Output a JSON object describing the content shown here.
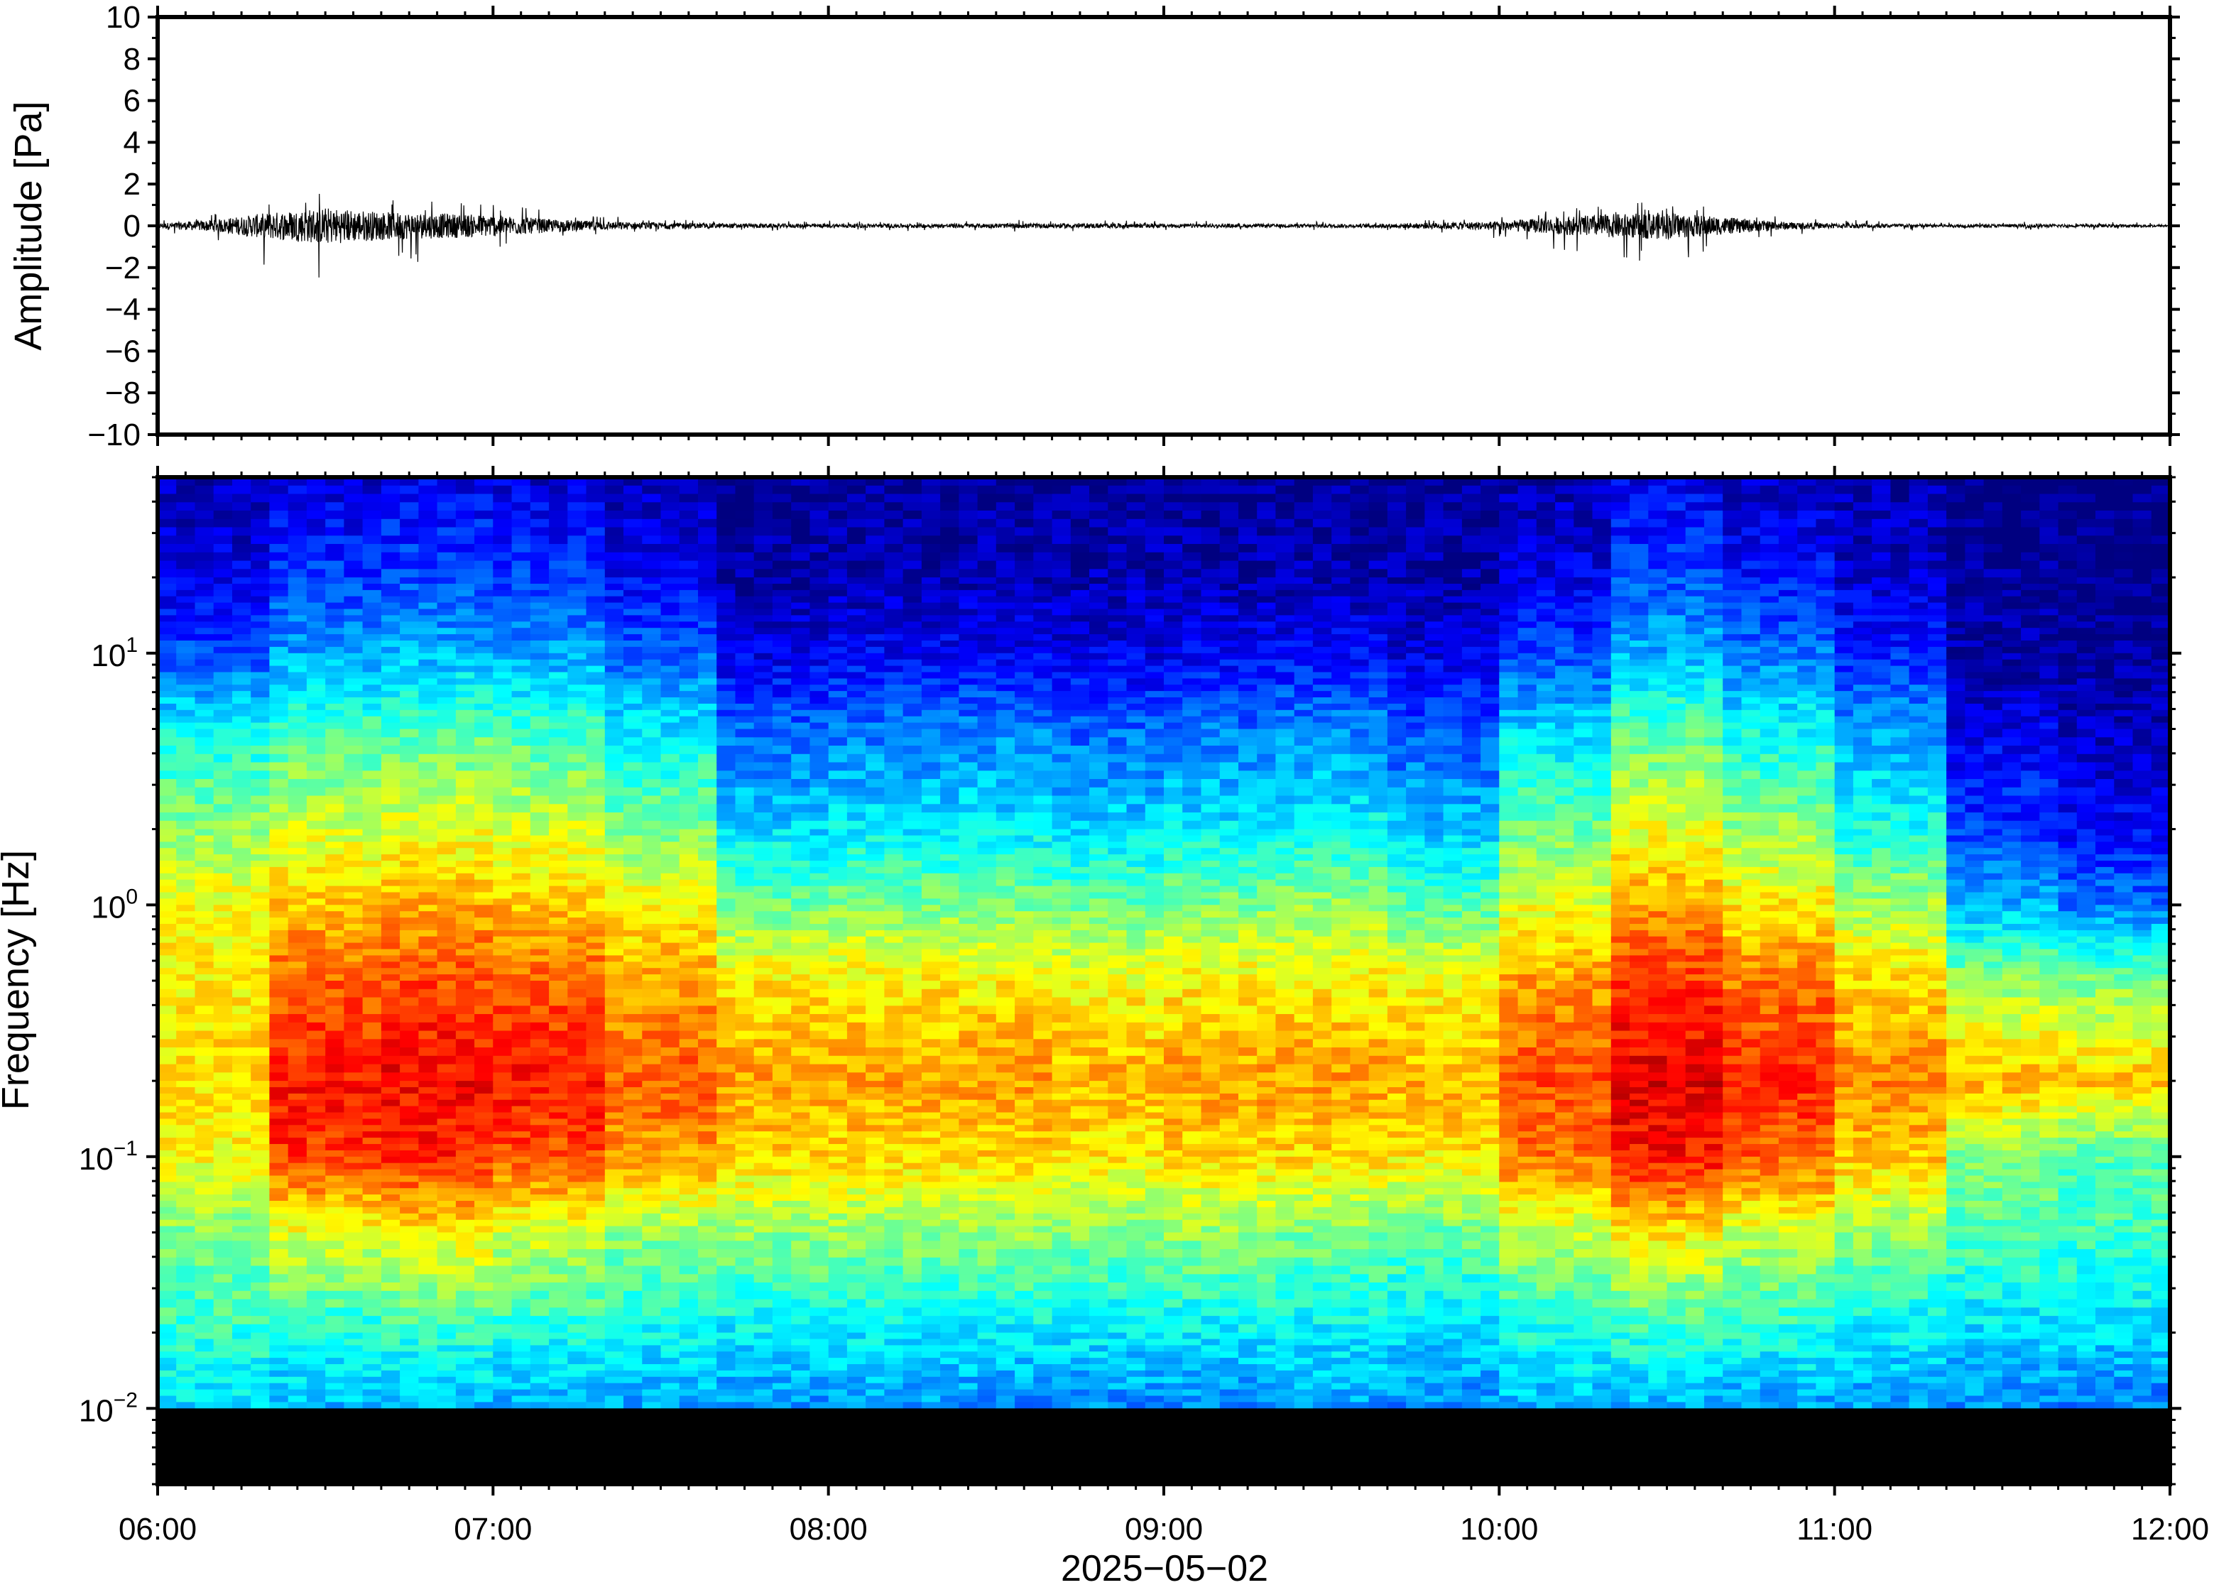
{
  "chart_data": [
    {
      "type": "line",
      "title": "",
      "xlabel": "",
      "ylabel": "Amplitude [Pa]",
      "ylim": [
        -10,
        10
      ],
      "yticks": [
        10,
        8,
        6,
        4,
        2,
        0,
        -2,
        -4,
        -6,
        -8,
        -10
      ],
      "ytick_labels": [
        "10",
        "8",
        "6",
        "4",
        "2",
        "0",
        "−2",
        "−4",
        "−6",
        "−8",
        "−10"
      ],
      "xlim": [
        "06:00",
        "12:00"
      ],
      "grid": false,
      "series": [
        {
          "x": [
            "06:00",
            "06:10",
            "06:20",
            "06:30",
            "06:40",
            "06:50",
            "07:00",
            "07:10",
            "07:20",
            "07:30",
            "07:40",
            "07:50",
            "08:00",
            "08:20",
            "08:40",
            "09:00",
            "09:20",
            "09:40",
            "10:00",
            "10:10",
            "10:20",
            "10:30",
            "10:40",
            "10:50",
            "11:00",
            "11:20",
            "11:40",
            "12:00"
          ],
          "envelope_max": [
            0.3,
            0.6,
            1.2,
            1.6,
            1.4,
            1.2,
            1.1,
            0.8,
            0.5,
            0.4,
            0.3,
            0.25,
            0.25,
            0.25,
            0.3,
            0.25,
            0.2,
            0.25,
            0.5,
            0.8,
            1.0,
            1.2,
            0.9,
            0.5,
            0.3,
            0.2,
            0.2,
            0.15
          ],
          "envelope_min": [
            -0.3,
            -0.8,
            -2.0,
            -2.8,
            -2.0,
            -1.8,
            -1.5,
            -0.8,
            -0.5,
            -0.4,
            -0.3,
            -0.25,
            -0.25,
            -0.25,
            -0.3,
            -0.25,
            -0.2,
            -0.25,
            -0.6,
            -1.2,
            -1.8,
            -2.0,
            -1.2,
            -0.5,
            -0.3,
            -0.2,
            -0.2,
            -0.15
          ]
        }
      ]
    },
    {
      "type": "heatmap",
      "title": "",
      "xlabel": "2025−05−02",
      "ylabel": "Frequency [Hz]",
      "yscale": "log",
      "ylim": [
        0.005,
        50
      ],
      "ytick_labels": [
        "10",
        "10",
        "10",
        "10"
      ],
      "ytick_exponents": [
        "1",
        "0",
        "−1",
        "−2"
      ],
      "ytick_values": [
        10,
        1,
        0.1,
        0.01
      ],
      "xlim": [
        "06:00",
        "12:00"
      ],
      "xtick_labels": [
        "06:00",
        "07:00",
        "08:00",
        "09:00",
        "10:00",
        "11:00",
        "12:00"
      ],
      "colormap": "jet",
      "x_segments": [
        "06:00-06:20",
        "06:20-06:40",
        "06:40-07:00",
        "07:00-07:20",
        "07:20-07:40",
        "07:40-08:00",
        "08:00-08:20",
        "08:20-08:40",
        "08:40-09:00",
        "09:00-09:20",
        "09:20-09:40",
        "09:40-10:00",
        "10:00-10:20",
        "10:20-10:40",
        "10:40-11:00",
        "11:00-11:20",
        "11:20-11:40",
        "11:40-12:00"
      ],
      "y_bands_hz": [
        50,
        20,
        10,
        5,
        2,
        1,
        0.5,
        0.2,
        0.1,
        0.05,
        0.02,
        0.01,
        0.005
      ],
      "relative_power": [
        [
          0.05,
          0.1,
          0.2,
          0.38,
          0.52,
          0.62,
          0.64,
          0.66,
          0.62,
          0.5,
          0.42,
          0.34
        ],
        [
          0.08,
          0.18,
          0.28,
          0.44,
          0.58,
          0.68,
          0.78,
          0.86,
          0.82,
          0.6,
          0.4,
          0.3
        ],
        [
          0.1,
          0.2,
          0.3,
          0.46,
          0.6,
          0.7,
          0.8,
          0.88,
          0.84,
          0.64,
          0.42,
          0.3
        ],
        [
          0.08,
          0.18,
          0.28,
          0.44,
          0.58,
          0.68,
          0.78,
          0.86,
          0.8,
          0.58,
          0.4,
          0.28
        ],
        [
          0.05,
          0.12,
          0.22,
          0.36,
          0.5,
          0.62,
          0.72,
          0.78,
          0.72,
          0.52,
          0.38,
          0.28
        ],
        [
          0.02,
          0.04,
          0.1,
          0.22,
          0.34,
          0.48,
          0.64,
          0.72,
          0.66,
          0.52,
          0.36,
          0.26
        ],
        [
          0.02,
          0.05,
          0.12,
          0.24,
          0.36,
          0.5,
          0.64,
          0.72,
          0.66,
          0.52,
          0.36,
          0.28
        ],
        [
          0.02,
          0.05,
          0.12,
          0.25,
          0.36,
          0.5,
          0.64,
          0.72,
          0.66,
          0.52,
          0.36,
          0.26
        ],
        [
          0.02,
          0.05,
          0.1,
          0.22,
          0.34,
          0.48,
          0.62,
          0.7,
          0.64,
          0.5,
          0.36,
          0.26
        ],
        [
          0.02,
          0.05,
          0.12,
          0.24,
          0.36,
          0.5,
          0.64,
          0.72,
          0.66,
          0.52,
          0.36,
          0.26
        ],
        [
          0.02,
          0.05,
          0.12,
          0.26,
          0.38,
          0.52,
          0.64,
          0.72,
          0.66,
          0.5,
          0.36,
          0.28
        ],
        [
          0.02,
          0.04,
          0.1,
          0.2,
          0.32,
          0.46,
          0.62,
          0.7,
          0.64,
          0.48,
          0.34,
          0.26
        ],
        [
          0.05,
          0.1,
          0.2,
          0.34,
          0.48,
          0.6,
          0.72,
          0.8,
          0.76,
          0.56,
          0.4,
          0.3
        ],
        [
          0.1,
          0.2,
          0.3,
          0.46,
          0.6,
          0.72,
          0.82,
          0.9,
          0.86,
          0.64,
          0.42,
          0.3
        ],
        [
          0.06,
          0.14,
          0.24,
          0.38,
          0.52,
          0.64,
          0.76,
          0.84,
          0.78,
          0.58,
          0.4,
          0.28
        ],
        [
          0.04,
          0.08,
          0.16,
          0.28,
          0.4,
          0.54,
          0.66,
          0.74,
          0.68,
          0.52,
          0.36,
          0.28
        ],
        [
          0.0,
          0.02,
          0.04,
          0.1,
          0.18,
          0.3,
          0.52,
          0.7,
          0.5,
          0.46,
          0.34,
          0.26
        ],
        [
          0.0,
          0.0,
          0.02,
          0.06,
          0.12,
          0.24,
          0.5,
          0.68,
          0.46,
          0.44,
          0.34,
          0.24
        ]
      ]
    }
  ]
}
